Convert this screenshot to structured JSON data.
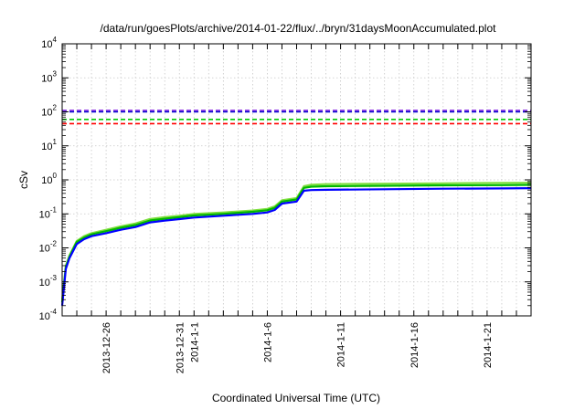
{
  "chart_data": {
    "type": "line",
    "title": "/data/run/goesPlots/archive/2014-01-22/flux/../bryn/31daysMoonAccumulated.plot",
    "xlabel": "Coordinated Universal Time (UTC)",
    "ylabel": "cSv",
    "xlim": [
      "2013-12-23",
      "2014-01-24"
    ],
    "ylim": [
      0.0001,
      10000
    ],
    "yscale": "log",
    "grid": true,
    "legend": "none",
    "x_ticks": [
      "2013-12-26",
      "2013-12-31",
      "2014-1-1",
      "2014-1-6",
      "2014-1-11",
      "2014-1-16",
      "2014-1-21"
    ],
    "y_ticks": [
      {
        "value": 0.0001,
        "base": "10",
        "exp": "-4"
      },
      {
        "value": 0.001,
        "base": "10",
        "exp": "-3"
      },
      {
        "value": 0.01,
        "base": "10",
        "exp": "-2"
      },
      {
        "value": 0.1,
        "base": "10",
        "exp": "-1"
      },
      {
        "value": 1,
        "base": "10",
        "exp": "0"
      },
      {
        "value": 10,
        "base": "10",
        "exp": "1"
      },
      {
        "value": 100,
        "base": "10",
        "exp": "2"
      },
      {
        "value": 1000,
        "base": "10",
        "exp": "3"
      },
      {
        "value": 10000,
        "base": "10",
        "exp": "4"
      }
    ],
    "thresholds": [
      {
        "color": "#8a2be2",
        "value": 110
      },
      {
        "color": "#0000cc",
        "value": 100
      },
      {
        "color": "#00cc00",
        "value": 60
      },
      {
        "color": "#ff0000",
        "value": 45
      }
    ],
    "series": [
      {
        "color": "#7fdf3f",
        "x": [
          "2013-12-23 00:00",
          "2013-12-23 06:00",
          "2013-12-23 12:00",
          "2013-12-24 00:00",
          "2013-12-24 12:00",
          "2013-12-25 00:00",
          "2013-12-26 00:00",
          "2013-12-27 00:00",
          "2013-12-28 00:00",
          "2013-12-29 00:00",
          "2013-12-30 00:00",
          "2013-12-31 00:00",
          "2014-01-01 00:00",
          "2014-01-03 00:00",
          "2014-01-05 00:00",
          "2014-01-06 00:00",
          "2014-01-06 12:00",
          "2014-01-07 00:00",
          "2014-01-08 00:00",
          "2014-01-08 12:00",
          "2014-01-09 00:00",
          "2014-01-10 00:00",
          "2014-01-14 00:00",
          "2014-01-18 00:00",
          "2014-01-22 00:00",
          "2014-01-24 00:00"
        ],
        "values": [
          0.0003,
          0.003,
          0.006,
          0.016,
          0.022,
          0.027,
          0.034,
          0.043,
          0.052,
          0.071,
          0.08,
          0.088,
          0.1,
          0.11,
          0.125,
          0.14,
          0.165,
          0.25,
          0.29,
          0.65,
          0.72,
          0.75,
          0.77,
          0.79,
          0.81,
          0.82
        ]
      },
      {
        "color": "#00b800",
        "x": [
          "2013-12-23 00:00",
          "2013-12-23 06:00",
          "2013-12-23 12:00",
          "2013-12-24 00:00",
          "2013-12-24 12:00",
          "2013-12-25 00:00",
          "2013-12-26 00:00",
          "2013-12-27 00:00",
          "2013-12-28 00:00",
          "2013-12-29 00:00",
          "2013-12-30 00:00",
          "2013-12-31 00:00",
          "2014-01-01 00:00",
          "2014-01-03 00:00",
          "2014-01-05 00:00",
          "2014-01-06 00:00",
          "2014-01-06 12:00",
          "2014-01-07 00:00",
          "2014-01-08 00:00",
          "2014-01-08 12:00",
          "2014-01-09 00:00",
          "2014-01-10 00:00",
          "2014-01-14 00:00",
          "2014-01-18 00:00",
          "2014-01-22 00:00",
          "2014-01-24 00:00"
        ],
        "values": [
          0.00025,
          0.0027,
          0.0055,
          0.015,
          0.02,
          0.025,
          0.031,
          0.039,
          0.047,
          0.064,
          0.072,
          0.08,
          0.09,
          0.1,
          0.115,
          0.128,
          0.15,
          0.23,
          0.265,
          0.58,
          0.63,
          0.65,
          0.67,
          0.69,
          0.7,
          0.71
        ]
      },
      {
        "color": "#0000ff",
        "x": [
          "2013-12-23 00:00",
          "2013-12-23 06:00",
          "2013-12-23 12:00",
          "2013-12-24 00:00",
          "2013-12-24 12:00",
          "2013-12-25 00:00",
          "2013-12-26 00:00",
          "2013-12-27 00:00",
          "2013-12-28 00:00",
          "2013-12-29 00:00",
          "2013-12-30 00:00",
          "2013-12-31 00:00",
          "2014-01-01 00:00",
          "2014-01-03 00:00",
          "2014-01-05 00:00",
          "2014-01-06 00:00",
          "2014-01-06 12:00",
          "2014-01-07 00:00",
          "2014-01-08 00:00",
          "2014-01-08 12:00",
          "2014-01-09 00:00",
          "2014-01-10 00:00",
          "2014-01-14 00:00",
          "2014-01-18 00:00",
          "2014-01-22 00:00",
          "2014-01-24 00:00"
        ],
        "values": [
          0.0002,
          0.0024,
          0.005,
          0.013,
          0.018,
          0.022,
          0.027,
          0.034,
          0.041,
          0.056,
          0.063,
          0.07,
          0.078,
          0.088,
          0.1,
          0.11,
          0.13,
          0.2,
          0.23,
          0.48,
          0.5,
          0.51,
          0.53,
          0.55,
          0.56,
          0.57
        ]
      }
    ]
  }
}
